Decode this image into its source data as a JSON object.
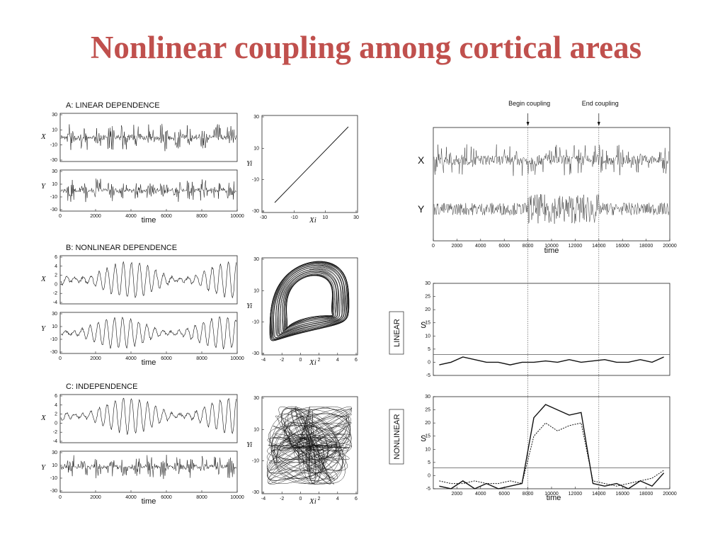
{
  "title": "Nonlinear coupling among cortical areas",
  "left_panels": [
    {
      "label": "A: LINEAR DEPENDENCE",
      "x_name": "X",
      "y_name": "Y",
      "x_yticks": [
        30,
        10,
        -10,
        -30
      ],
      "y_yticks": [
        30,
        10,
        -10,
        -30
      ],
      "time_ticks": [
        0,
        2000,
        4000,
        6000,
        8000,
        10000
      ],
      "time_label": "time",
      "scatter_xticks": [
        -30,
        -10,
        10,
        30
      ],
      "scatter_yticks": [
        30,
        10,
        -10,
        -30
      ],
      "scatter_xlabel": "Xi",
      "scatter_ylabel": "Yi"
    },
    {
      "label": "B: NONLINEAR DEPENDENCE",
      "x_name": "X",
      "y_name": "Y",
      "x_yticks": [
        6,
        4,
        2,
        0,
        -2,
        -4
      ],
      "y_yticks": [
        30,
        10,
        -10,
        -30
      ],
      "time_ticks": [
        0,
        2000,
        4000,
        6000,
        8000,
        10000
      ],
      "time_label": "time",
      "scatter_xticks": [
        -4,
        -2,
        0,
        2,
        4,
        6
      ],
      "scatter_yticks": [
        30,
        10,
        -10,
        -30
      ],
      "scatter_xlabel": "Xi",
      "scatter_ylabel": "Yi"
    },
    {
      "label": "C: INDEPENDENCE",
      "x_name": "X",
      "y_name": "Y",
      "x_yticks": [
        6,
        4,
        2,
        0,
        -2,
        -4
      ],
      "y_yticks": [
        30,
        10,
        -10,
        -30
      ],
      "time_ticks": [
        0,
        2000,
        4000,
        6000,
        8000,
        10000
      ],
      "time_label": "time",
      "scatter_xticks": [
        -4,
        -2,
        0,
        2,
        4,
        6
      ],
      "scatter_yticks": [
        30,
        10,
        -10,
        -30
      ],
      "scatter_xlabel": "Xi",
      "scatter_ylabel": "Yi"
    }
  ],
  "right": {
    "begin": {
      "label": "Begin coupling",
      "time": 8000
    },
    "end": {
      "label": "End coupling",
      "time": 14000
    },
    "x_name": "X",
    "y_name": "Y",
    "time_ticks": [
      0,
      2000,
      4000,
      6000,
      8000,
      10000,
      12000,
      14000,
      16000,
      18000,
      20000
    ],
    "time_label": "time",
    "linear": {
      "box_label": "LINEAR",
      "s_label": "S",
      "yticks": [
        30,
        25,
        20,
        15,
        10,
        5,
        0,
        -5
      ],
      "threshold": 3,
      "x": [
        500,
        1500,
        2500,
        3500,
        4500,
        5500,
        6500,
        7500,
        8500,
        9500,
        10500,
        11500,
        12500,
        13500,
        14500,
        15500,
        16500,
        17500,
        18500,
        19500
      ],
      "series": [
        {
          "style": "solid",
          "values": [
            -1,
            0,
            2,
            1,
            0,
            0,
            -1,
            0,
            0,
            0.5,
            0,
            1,
            0,
            0.5,
            1,
            0,
            0,
            1,
            0,
            2
          ]
        }
      ]
    },
    "nonlinear": {
      "box_label": "NONLINEAR",
      "s_label": "S",
      "yticks": [
        30,
        25,
        20,
        15,
        10,
        5,
        0,
        -5
      ],
      "threshold": 3,
      "x": [
        500,
        1500,
        2500,
        3500,
        4500,
        5500,
        6500,
        7500,
        8500,
        9500,
        10500,
        11500,
        12500,
        13500,
        14500,
        15500,
        16500,
        17500,
        18500,
        19500
      ],
      "xticks": [
        2000,
        4000,
        6000,
        8000,
        10000,
        12000,
        14000,
        16000,
        18000,
        20000
      ],
      "time_label": "time",
      "series": [
        {
          "style": "solid",
          "values": [
            -4,
            -5,
            -2,
            -5,
            -3,
            -5,
            -4,
            -3,
            22,
            27,
            25,
            23,
            24,
            -3,
            -4,
            -3,
            -5,
            -2,
            -4,
            1
          ]
        },
        {
          "style": "dotted",
          "values": [
            -2,
            -3,
            -3,
            -2,
            -3,
            -3,
            -2,
            -3,
            15,
            20,
            17,
            19,
            20,
            -2,
            -3,
            -4,
            -3,
            -2,
            -1,
            2
          ]
        }
      ]
    }
  }
}
